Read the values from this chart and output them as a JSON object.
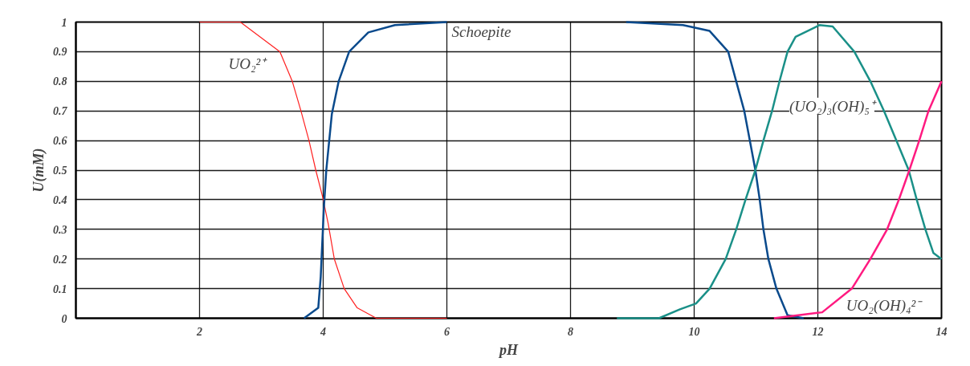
{
  "chart_data": {
    "type": "line",
    "xlabel": "pH",
    "ylabel": "U(mM)",
    "xlim": [
      0,
      14
    ],
    "ylim": [
      0,
      1
    ],
    "xticks": [
      2,
      4,
      6,
      8,
      10,
      12,
      14
    ],
    "yticks": [
      0,
      0.1,
      0.2,
      0.3,
      0.4,
      0.5,
      0.6,
      0.7,
      0.8,
      0.9,
      1
    ],
    "grid": true,
    "marker": "none",
    "line_style": "solid",
    "series": [
      {
        "name": "UO₂²⁺",
        "color": "#ff2020",
        "x": [
          2,
          2.66,
          3.3,
          3.5,
          3.64,
          3.77,
          3.88,
          3.99,
          4.08,
          4.18,
          4.34,
          4.55,
          4.86,
          6
        ],
        "values": [
          1,
          1,
          0.9,
          0.8,
          0.7,
          0.6,
          0.5,
          0.41,
          0.32,
          0.2,
          0.1,
          0.035,
          0,
          0
        ]
      },
      {
        "name": "Schoepite",
        "color": "#0a4a8c",
        "x": [
          3.69,
          3.92,
          3.96,
          4.01,
          4.05,
          4.14,
          4.25,
          4.42,
          4.73,
          5.16,
          6,
          7.5,
          8.9,
          9.82,
          10.25,
          10.55,
          10.68,
          10.81,
          10.9,
          10.99,
          11.06,
          11.12,
          11.2,
          11.33,
          11.51,
          11.77
        ],
        "values": [
          0,
          0.035,
          0.14,
          0.37,
          0.5,
          0.69,
          0.8,
          0.9,
          0.965,
          0.99,
          1,
          null,
          1,
          0.99,
          0.97,
          0.9,
          0.8,
          0.7,
          0.6,
          0.5,
          0.4,
          0.3,
          0.2,
          0.1,
          0.01,
          0
        ]
      },
      {
        "name": "(UO₂)₃(OH)₅⁺",
        "color": "#1a9088",
        "x": [
          8.75,
          9.43,
          9.77,
          10.03,
          10.25,
          10.51,
          10.68,
          10.83,
          10.99,
          11.12,
          11.26,
          11.38,
          11.51,
          11.64,
          12.03,
          12.24,
          12.59,
          12.85,
          13.07,
          13.27,
          13.47,
          13.6,
          13.74,
          13.87,
          14
        ],
        "values": [
          0,
          0,
          0.03,
          0.05,
          0.1,
          0.2,
          0.3,
          0.4,
          0.5,
          0.6,
          0.7,
          0.8,
          0.9,
          0.95,
          0.99,
          0.985,
          0.9,
          0.8,
          0.7,
          0.6,
          0.5,
          0.4,
          0.3,
          0.22,
          0.2
        ]
      },
      {
        "name": "UO₂(OH)₄²⁻",
        "color": "#ff1a80",
        "x": [
          11.29,
          12.07,
          12.55,
          12.85,
          13.12,
          13.31,
          13.48,
          13.64,
          13.79,
          14
        ],
        "values": [
          0,
          0.02,
          0.1,
          0.2,
          0.3,
          0.4,
          0.5,
          0.6,
          0.7,
          0.8
        ]
      }
    ]
  }
}
